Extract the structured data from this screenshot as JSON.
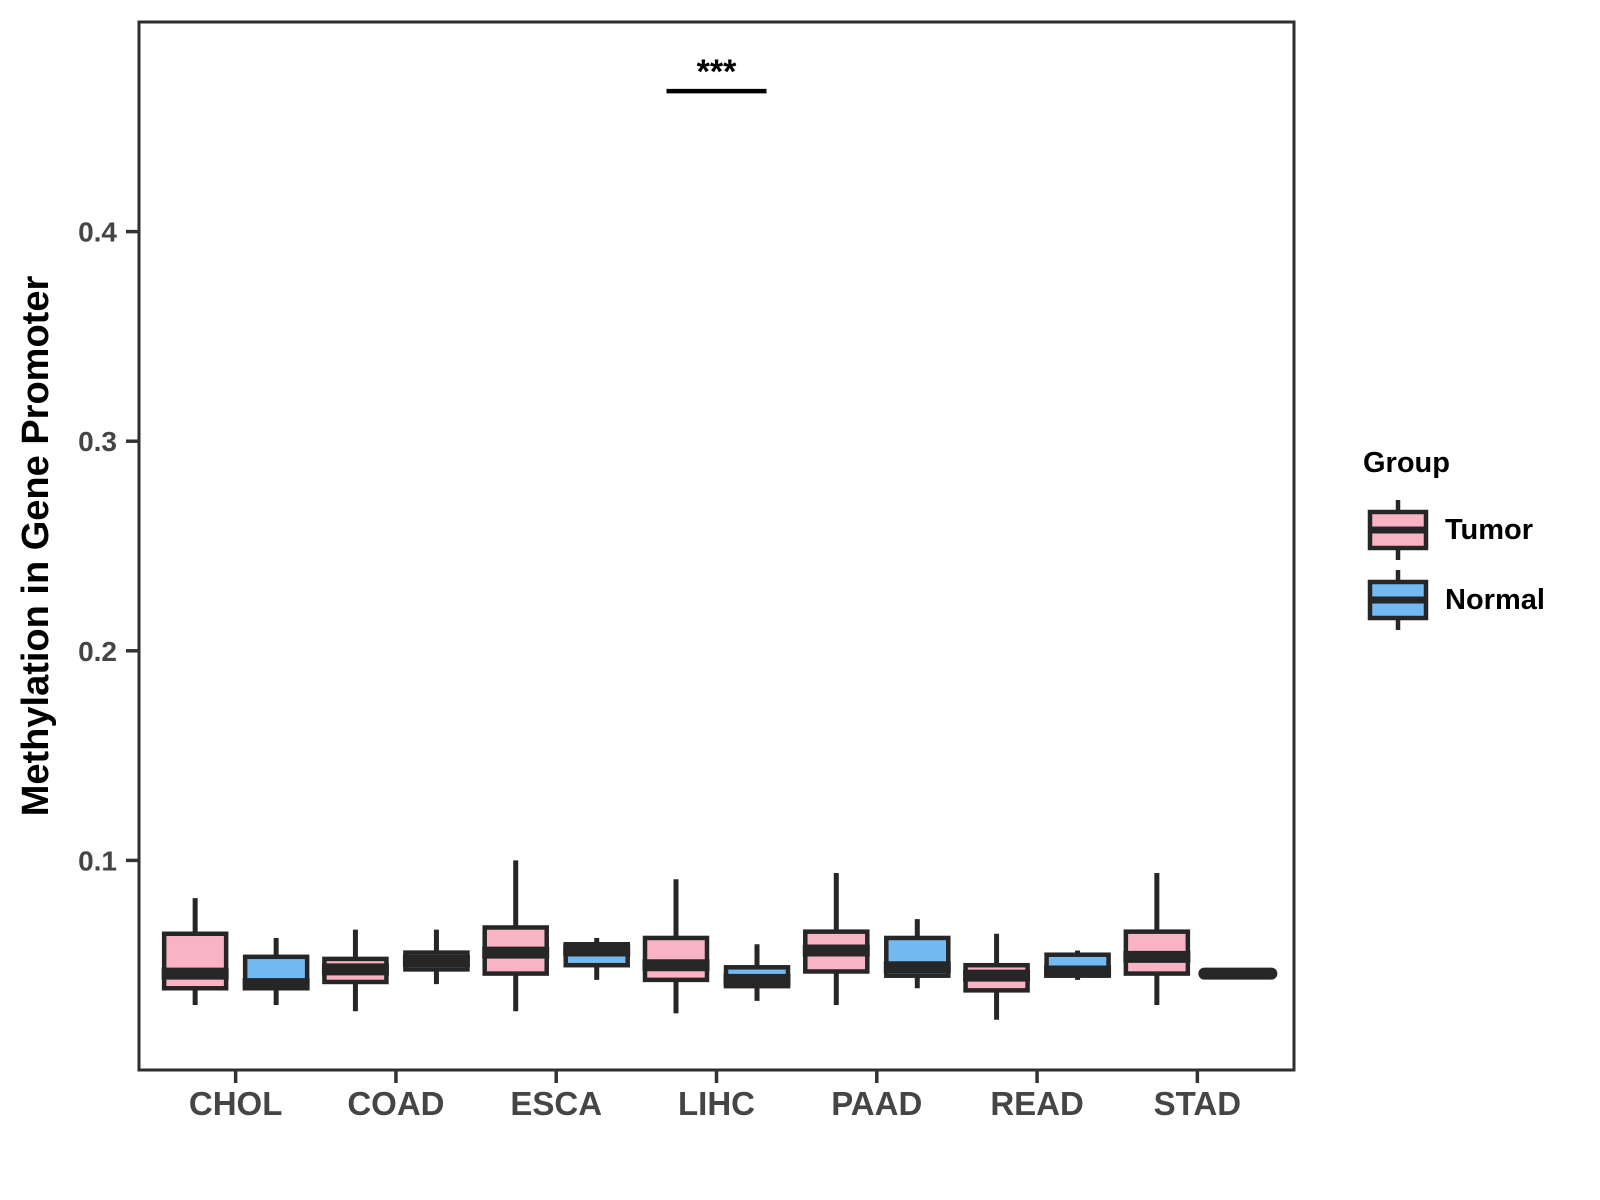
{
  "chart_data": {
    "type": "boxplot",
    "title": "",
    "xlabel": "",
    "ylabel": "Methylation in Gene Promoter",
    "categories": [
      "CHOL",
      "COAD",
      "ESCA",
      "LIHC",
      "PAAD",
      "READ",
      "STAD"
    ],
    "ylim": [
      0,
      0.5
    ],
    "yticks": [
      0.1,
      0.2,
      0.3,
      0.4
    ],
    "ytick_labels": [
      "0.1",
      "0.2",
      "0.3",
      "0.4"
    ],
    "grid": false,
    "panel_border_color": "#2E2E2E",
    "box_outline_color": "#262626",
    "tick_label_color": "#454545",
    "axis_title_color": "#000000",
    "legend": {
      "title": "Group",
      "position": "right",
      "entries": [
        {
          "label": "Tumor",
          "color": "#F9B3C3"
        },
        {
          "label": "Normal",
          "color": "#73BAF2"
        }
      ]
    },
    "series": [
      {
        "name": "Tumor",
        "color": "#F9B3C3",
        "boxes": [
          {
            "category": "CHOL",
            "whisker_low": 0.031,
            "q1": 0.039,
            "median": 0.046,
            "q3": 0.065,
            "whisker_high": 0.082
          },
          {
            "category": "COAD",
            "whisker_low": 0.028,
            "q1": 0.042,
            "median": 0.048,
            "q3": 0.053,
            "whisker_high": 0.067
          },
          {
            "category": "ESCA",
            "whisker_low": 0.028,
            "q1": 0.046,
            "median": 0.056,
            "q3": 0.068,
            "whisker_high": 0.1
          },
          {
            "category": "LIHC",
            "whisker_low": 0.027,
            "q1": 0.043,
            "median": 0.05,
            "q3": 0.063,
            "whisker_high": 0.091
          },
          {
            "category": "PAAD",
            "whisker_low": 0.031,
            "q1": 0.047,
            "median": 0.057,
            "q3": 0.066,
            "whisker_high": 0.094
          },
          {
            "category": "READ",
            "whisker_low": 0.024,
            "q1": 0.038,
            "median": 0.045,
            "q3": 0.05,
            "whisker_high": 0.065
          },
          {
            "category": "STAD",
            "whisker_low": 0.031,
            "q1": 0.046,
            "median": 0.054,
            "q3": 0.066,
            "whisker_high": 0.094
          }
        ]
      },
      {
        "name": "Normal",
        "color": "#73BAF2",
        "boxes": [
          {
            "category": "CHOL",
            "whisker_low": 0.031,
            "q1": 0.039,
            "median": 0.041,
            "q3": 0.054,
            "whisker_high": 0.063
          },
          {
            "category": "COAD",
            "whisker_low": 0.041,
            "q1": 0.048,
            "median": 0.052,
            "q3": 0.056,
            "whisker_high": 0.067
          },
          {
            "category": "ESCA",
            "whisker_low": 0.043,
            "q1": 0.05,
            "median": 0.057,
            "q3": 0.06,
            "whisker_high": 0.063
          },
          {
            "category": "LIHC",
            "whisker_low": 0.033,
            "q1": 0.04,
            "median": 0.043,
            "q3": 0.049,
            "whisker_high": 0.06
          },
          {
            "category": "PAAD",
            "whisker_low": 0.039,
            "q1": 0.045,
            "median": 0.049,
            "q3": 0.063,
            "whisker_high": 0.072
          },
          {
            "category": "READ",
            "whisker_low": 0.043,
            "q1": 0.045,
            "median": 0.047,
            "q3": 0.055,
            "whisker_high": 0.057
          },
          {
            "category": "STAD",
            "whisker_low": 0.046,
            "q1": 0.046,
            "median": 0.046,
            "q3": 0.046,
            "whisker_high": 0.046
          }
        ]
      }
    ],
    "annotation": {
      "label": "***",
      "category": "LIHC",
      "bar_y_value": 0.467,
      "label_y_value": 0.471
    }
  }
}
